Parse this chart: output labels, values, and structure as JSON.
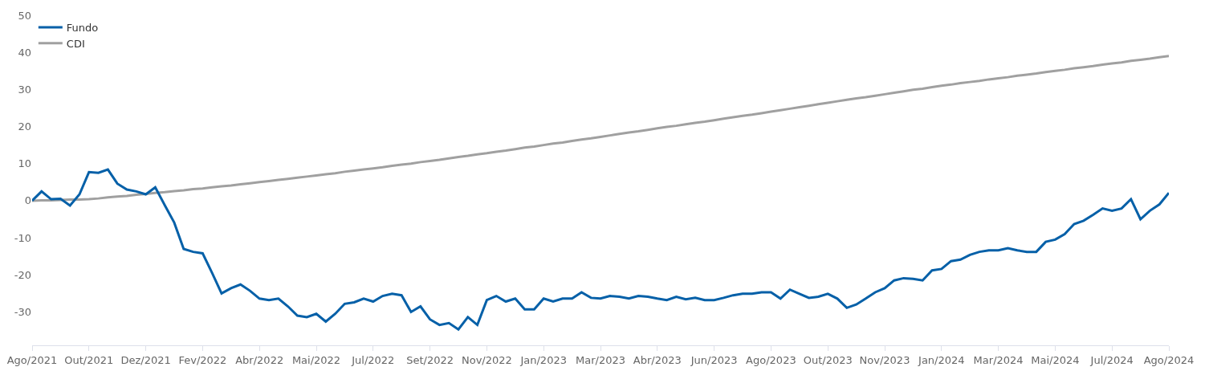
{
  "chart_data": {
    "type": "line",
    "categories": [
      "Ago/2021",
      null,
      null,
      null,
      null,
      null,
      "Out/2021",
      null,
      null,
      null,
      null,
      null,
      "Dez/2021",
      null,
      null,
      null,
      null,
      null,
      "Fev/2022",
      null,
      null,
      null,
      null,
      null,
      "Abr/2022",
      null,
      null,
      null,
      null,
      null,
      "Mai/2022",
      null,
      null,
      null,
      null,
      null,
      "Jul/2022",
      null,
      null,
      null,
      null,
      null,
      "Set/2022",
      null,
      null,
      null,
      null,
      null,
      "Nov/2022",
      null,
      null,
      null,
      null,
      null,
      "Jan/2023",
      null,
      null,
      null,
      null,
      null,
      "Mar/2023",
      null,
      null,
      null,
      null,
      null,
      "Abr/2023",
      null,
      null,
      null,
      null,
      null,
      "Jun/2023",
      null,
      null,
      null,
      null,
      null,
      "Ago/2023",
      null,
      null,
      null,
      null,
      null,
      "Out/2023",
      null,
      null,
      null,
      null,
      null,
      "Nov/2023",
      null,
      null,
      null,
      null,
      null,
      "Jan/2024",
      null,
      null,
      null,
      null,
      null,
      "Mar/2024",
      null,
      null,
      null,
      null,
      null,
      "Mai/2024",
      null,
      null,
      null,
      null,
      null,
      "Jul/2024",
      null,
      null,
      null,
      null,
      null,
      "Ago/2024"
    ],
    "series": [
      {
        "name": "Fundo",
        "color": "#0560a8",
        "values": [
          0,
          2.5,
          0.4,
          0.5,
          -1.3,
          1.7,
          7.7,
          7.5,
          8.4,
          4.6,
          3,
          2.5,
          1.7,
          3.6,
          -1.2,
          -5.9,
          -13,
          -13.8,
          -14.2,
          -19.5,
          -25,
          -23.6,
          -22.6,
          -24.3,
          -26.4,
          -26.8,
          -26.4,
          -28.5,
          -31,
          -31.4,
          -30.5,
          -32.6,
          -30.5,
          -27.8,
          -27.4,
          -26.4,
          -27.2,
          -25.7,
          -25.1,
          -25.5,
          -30,
          -28.5,
          -32,
          -33.5,
          -33,
          -34.7,
          -31.4,
          -33.5,
          -26.8,
          -25.7,
          -27.2,
          -26.4,
          -29.3,
          -29.3,
          -26.4,
          -27.2,
          -26.4,
          -26.4,
          -24.7,
          -26.2,
          -26.4,
          -25.7,
          -25.9,
          -26.4,
          -25.7,
          -25.9,
          -26.4,
          -26.8,
          -25.9,
          -26.6,
          -26.2,
          -26.8,
          -26.8,
          -26.2,
          -25.5,
          -25.1,
          -25.1,
          -24.7,
          -24.7,
          -26.4,
          -24,
          -25.1,
          -26.2,
          -25.9,
          -25.1,
          -26.4,
          -28.9,
          -28,
          -26.4,
          -24.7,
          -23.6,
          -21.5,
          -20.9,
          -21.1,
          -21.5,
          -18.8,
          -18.4,
          -16.3,
          -15.9,
          -14.6,
          -13.8,
          -13.4,
          -13.4,
          -12.8,
          -13.4,
          -13.8,
          -13.8,
          -11.1,
          -10.5,
          -9,
          -6.3,
          -5.4,
          -3.8,
          -2.1,
          -2.7,
          -2.1,
          0.4,
          -5,
          -2.7,
          -1,
          2.1
        ]
      },
      {
        "name": "CDI",
        "color": "#a0a0a0",
        "values": [
          0,
          0.1,
          0.1,
          0.2,
          0.3,
          0.3,
          0.4,
          0.6,
          0.9,
          1.1,
          1.3,
          1.6,
          1.8,
          2.1,
          2.3,
          2.6,
          2.8,
          3.1,
          3.3,
          3.6,
          3.9,
          4.1,
          4.4,
          4.7,
          5,
          5.3,
          5.6,
          5.9,
          6.2,
          6.5,
          6.8,
          7.1,
          7.4,
          7.8,
          8.1,
          8.4,
          8.7,
          9,
          9.4,
          9.7,
          10,
          10.4,
          10.7,
          11,
          11.4,
          11.8,
          12.1,
          12.5,
          12.8,
          13.2,
          13.5,
          13.9,
          14.3,
          14.6,
          15,
          15.4,
          15.7,
          16.1,
          16.5,
          16.8,
          17.2,
          17.6,
          18,
          18.4,
          18.7,
          19.1,
          19.5,
          19.9,
          20.2,
          20.6,
          21,
          21.3,
          21.7,
          22.1,
          22.5,
          22.9,
          23.2,
          23.6,
          24,
          24.4,
          24.8,
          25.2,
          25.6,
          26,
          26.4,
          26.8,
          27.2,
          27.6,
          27.9,
          28.3,
          28.7,
          29.1,
          29.5,
          29.9,
          30.2,
          30.6,
          31,
          31.3,
          31.7,
          32,
          32.3,
          32.7,
          33,
          33.3,
          33.7,
          34,
          34.3,
          34.7,
          35,
          35.3,
          35.7,
          36,
          36.3,
          36.7,
          37,
          37.3,
          37.7,
          38,
          38.3,
          38.7,
          39
        ]
      }
    ],
    "ylim": [
      -39,
      50
    ],
    "yticks": [
      -30,
      -20,
      -10,
      0,
      10,
      20,
      30,
      40,
      50
    ],
    "legend": "top left",
    "marker": "none",
    "line_style": "solid"
  }
}
